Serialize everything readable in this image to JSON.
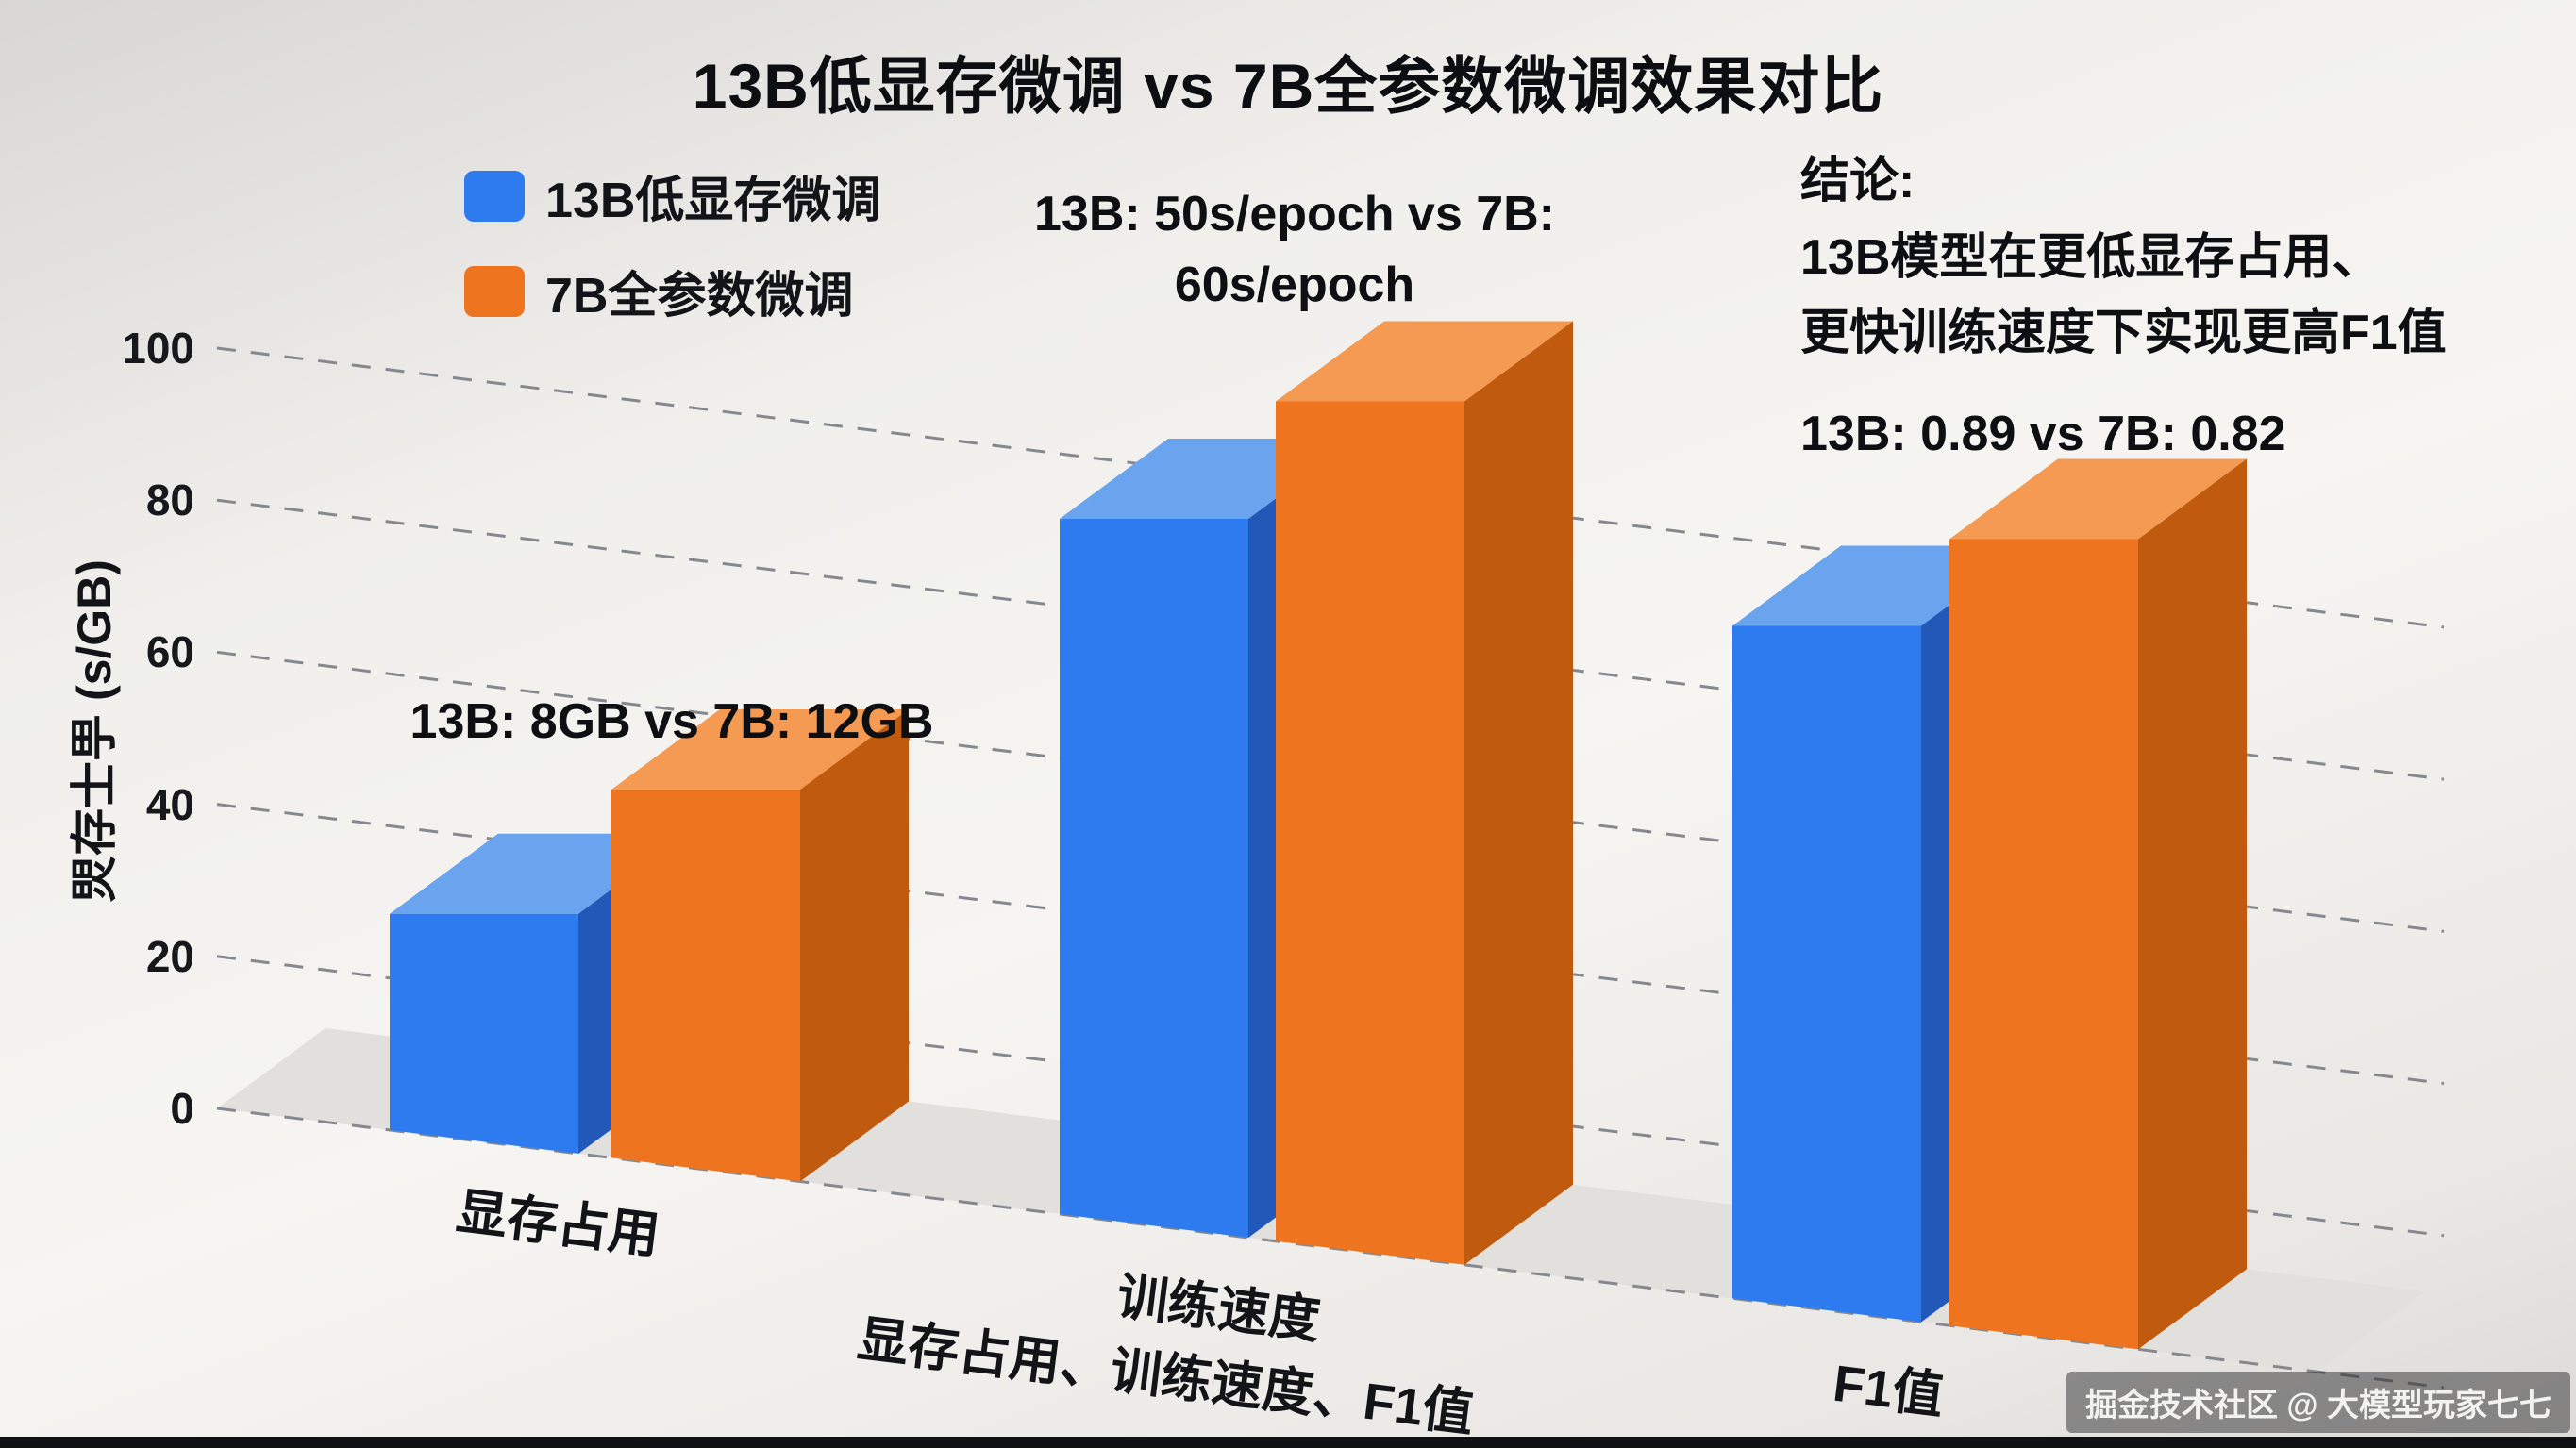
{
  "watermark": "掘金技术社区 @ 大模型玩家七七",
  "chart_data": {
    "type": "bar",
    "style": "3d-column",
    "title": "13B低显存微调 vs 7B全参数微调效果对比",
    "categories": [
      "显存占用",
      "训练速度",
      "F1值"
    ],
    "xlabel": "显存占用、训练速度、F1值",
    "ylabel": "焸存士甼 (s/GB)",
    "yticks": [
      0,
      20,
      40,
      60,
      80,
      100
    ],
    "ylim": [
      0,
      100
    ],
    "grid": "dashed",
    "legend_position": "top-left",
    "series": [
      {
        "name": "13B低显存微调",
        "color_front": "#2e7bf0",
        "color_top": "#6aa3ee",
        "color_side": "#2258b8",
        "values": [
          8,
          50,
          0.89
        ],
        "value_labels": [
          "8GB",
          "50s/epoch",
          "0.89"
        ],
        "drawn_heights": [
          30,
          93,
          90
        ]
      },
      {
        "name": "7B全参数微调",
        "color_front": "#ee7420",
        "color_top": "#f49a52",
        "color_side": "#c05a0e",
        "values": [
          12,
          60,
          0.82
        ],
        "value_labels": [
          "12GB",
          "60s/epoch",
          "0.82"
        ],
        "drawn_heights": [
          50,
          112,
          105
        ]
      }
    ],
    "annotations": {
      "memory": "13B: 8GB vs 7B: 12GB",
      "speed_line1": "13B: 50s/epoch vs 7B:",
      "speed_line2": "60s/epoch",
      "conclusion_title": "结论:",
      "conclusion_line1": "13B模型在更低显存占用、",
      "conclusion_line2": "更快训练速度下实现更高F1值",
      "f1": "13B: 0.89 vs 7B: 0.82"
    }
  }
}
